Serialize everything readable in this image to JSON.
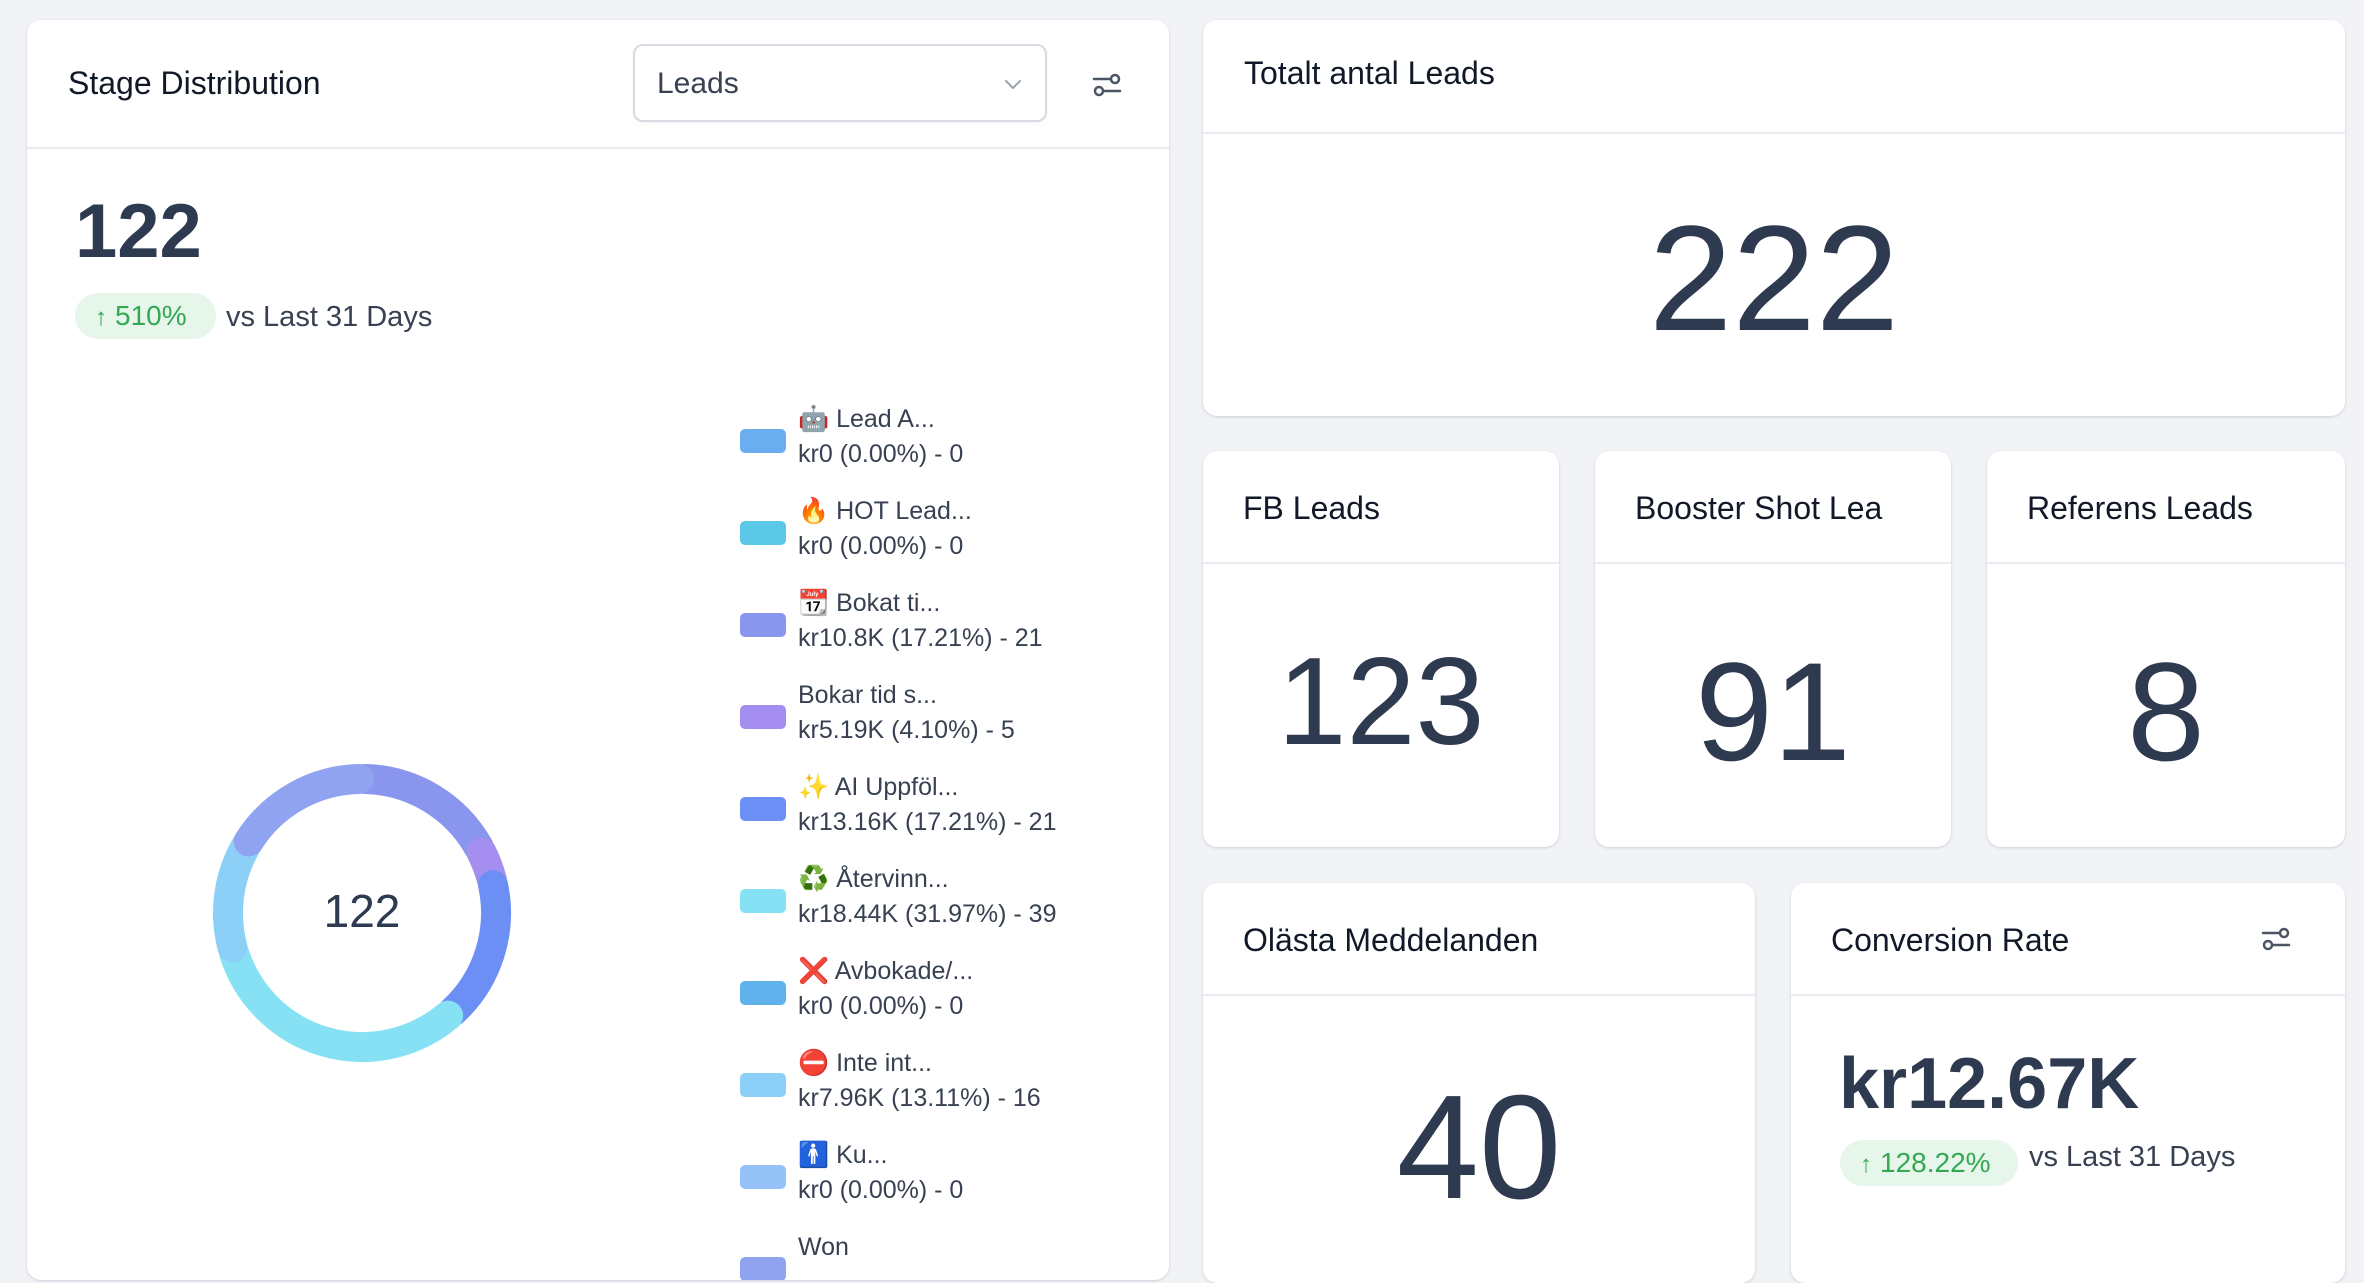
{
  "stage_distribution": {
    "title": "Stage Distribution",
    "select_value": "Leads",
    "total": "122",
    "change": "510%",
    "change_suffix": "vs Last 31 Days",
    "donut_center": "122",
    "legend": [
      {
        "name": "🤖 Lead   A...",
        "value": "kr0 (0.00%) - 0",
        "color": "#6aaef0"
      },
      {
        "name": "🔥 HOT Lead...",
        "value": "kr0 (0.00%) - 0",
        "color": "#5cc8e8"
      },
      {
        "name": "📆 Bokat ti...",
        "value": "kr10.8K (17.21%) - 21",
        "color": "#8a96ee"
      },
      {
        "name": "Bokar tid s...",
        "value": "kr5.19K (4.10%) - 5",
        "color": "#a48ef0"
      },
      {
        "name": "✨ AI Uppföl...",
        "value": "kr13.16K (17.21%) - 21",
        "color": "#6b8ff5"
      },
      {
        "name": "♻️ Återvinn...",
        "value": "kr18.44K (31.97%) - 39",
        "color": "#86e1f5"
      },
      {
        "name": "❌ Avbokade/...",
        "value": "kr0 (0.00%) - 0",
        "color": "#5fb2ec"
      },
      {
        "name": "⛔ Inte int...",
        "value": "kr7.96K (13.11%) - 16",
        "color": "#8dd0f7"
      },
      {
        "name": "🚹 Ku...",
        "value": "kr0 (0.00%) - 0",
        "color": "#96c3f7"
      },
      {
        "name": "Won",
        "value": "",
        "color": "#8fa3f0"
      }
    ],
    "donut_segments": [
      {
        "label": "Bokat ti",
        "value": 21,
        "color": "#8a96ee"
      },
      {
        "label": "Bokar tid s",
        "value": 5,
        "color": "#a48ef0"
      },
      {
        "label": "AI Uppföl",
        "value": 21,
        "color": "#6b8ff5"
      },
      {
        "label": "Återvinn",
        "value": 39,
        "color": "#86e1f5"
      },
      {
        "label": "Inte int",
        "value": 16,
        "color": "#8dd0f7"
      },
      {
        "label": "Won",
        "value": 20,
        "color": "#8fa3f0"
      }
    ]
  },
  "total_leads": {
    "title": "Totalt antal Leads",
    "value": "222"
  },
  "fb_leads": {
    "title": "FB Leads",
    "value": "123"
  },
  "booster_leads": {
    "title": "Booster Shot Lea",
    "value": "91"
  },
  "referens_leads": {
    "title": "Referens Leads",
    "value": "8"
  },
  "unread_messages": {
    "title": "Olästa Meddelanden",
    "value": "40"
  },
  "conversion_rate": {
    "title": "Conversion Rate",
    "value": "kr12.67K",
    "change": "128.22%",
    "change_suffix": "vs Last 31 Days"
  },
  "colors": {
    "accent_green": "#34a853",
    "pill_bg": "#e6f6ea",
    "number": "#2e3a4f"
  }
}
